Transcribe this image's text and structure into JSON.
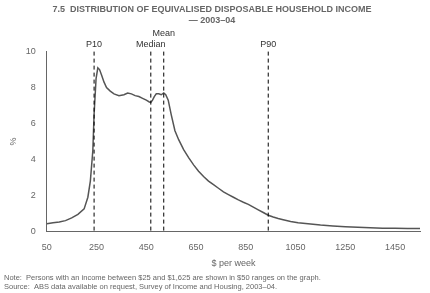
{
  "chart_data": {
    "type": "line",
    "title": "7.5  DISTRIBUTION OF EQUIVALISED DISPOSABLE HOUSEHOLD INCOME",
    "subtitle": "— 2003–04",
    "x_label": "$ per week",
    "y_label": "%",
    "xlim": [
      50,
      1550
    ],
    "ylim": [
      0,
      10
    ],
    "xticks": [
      50,
      250,
      450,
      650,
      850,
      1050,
      1250,
      1450
    ],
    "yticks": [
      0,
      2,
      4,
      6,
      8,
      10
    ],
    "grid": false,
    "color": "#555555",
    "vlines": [
      {
        "x": 240,
        "label": "P10"
      },
      {
        "x": 468,
        "label": "Median"
      },
      {
        "x": 520,
        "label": "Mean"
      },
      {
        "x": 940,
        "label": "P90"
      }
    ],
    "notes": [
      "Note:  Persons with an income between $25 and $1,625 are shown in $50 ranges on the graph.",
      "Source:  ABS data available on request, Survey of Income and Housing, 2003–04."
    ],
    "x": [
      50,
      75,
      100,
      125,
      150,
      175,
      200,
      215,
      225,
      235,
      240,
      248,
      255,
      262,
      270,
      280,
      290,
      305,
      320,
      340,
      360,
      375,
      390,
      405,
      420,
      435,
      450,
      462,
      468,
      475,
      482,
      490,
      500,
      510,
      520,
      528,
      538,
      550,
      565,
      580,
      600,
      620,
      640,
      660,
      680,
      700,
      720,
      740,
      760,
      780,
      800,
      820,
      840,
      860,
      880,
      900,
      920,
      940,
      960,
      980,
      1000,
      1030,
      1060,
      1100,
      1150,
      1200,
      1250,
      1300,
      1350,
      1400,
      1450,
      1500,
      1550
    ],
    "values": [
      0.42,
      0.48,
      0.52,
      0.6,
      0.75,
      0.95,
      1.25,
      1.9,
      2.8,
      4.5,
      6.5,
      8.5,
      9.1,
      9.0,
      8.7,
      8.3,
      8.0,
      7.8,
      7.65,
      7.55,
      7.6,
      7.7,
      7.65,
      7.55,
      7.5,
      7.4,
      7.3,
      7.2,
      7.18,
      7.3,
      7.5,
      7.65,
      7.65,
      7.6,
      7.7,
      7.6,
      7.3,
      6.5,
      5.6,
      5.1,
      4.55,
      4.1,
      3.7,
      3.35,
      3.05,
      2.8,
      2.6,
      2.4,
      2.2,
      2.05,
      1.9,
      1.75,
      1.62,
      1.5,
      1.35,
      1.2,
      1.05,
      0.9,
      0.8,
      0.72,
      0.65,
      0.55,
      0.48,
      0.42,
      0.35,
      0.3,
      0.26,
      0.23,
      0.2,
      0.18,
      0.17,
      0.16,
      0.16
    ]
  }
}
